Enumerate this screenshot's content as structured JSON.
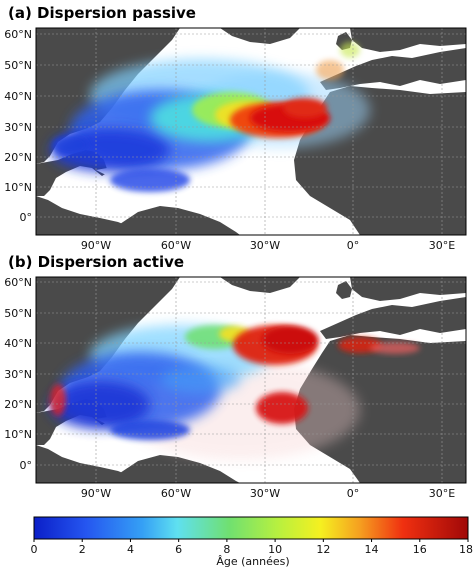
{
  "panels": [
    {
      "title": "(a) Dispersion passive",
      "lat_ticks": [
        "60°N",
        "50°N",
        "40°N",
        "30°N",
        "20°N",
        "10°N",
        "0°"
      ],
      "lon_ticks": [
        "90°W",
        "60°W",
        "30°W",
        "0°",
        "30°E"
      ]
    },
    {
      "title": "(b) Dispersion active",
      "lat_ticks": [
        "60°N",
        "50°N",
        "40°N",
        "30°N",
        "20°N",
        "10°N",
        "0°"
      ],
      "lon_ticks": [
        "90°W",
        "60°W",
        "30°W",
        "0°",
        "30°E"
      ]
    }
  ],
  "colorbar": {
    "title": "Âge (années)",
    "ticks": [
      "0",
      "2",
      "4",
      "6",
      "8",
      "10",
      "12",
      "14",
      "16",
      "18"
    ],
    "range": [
      0,
      18
    ]
  },
  "colors": {
    "land": "#4a4a4a",
    "ocean": "#ffffff",
    "young": "#1a2fd8",
    "old": "#e01010"
  }
}
